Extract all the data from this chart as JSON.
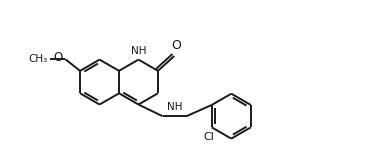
{
  "bg_color": "#ffffff",
  "line_color": "#1a1a1a",
  "line_width": 1.4,
  "figsize": [
    3.89,
    1.68
  ],
  "dpi": 100,
  "xlim": [
    0,
    10
  ],
  "ylim": [
    0,
    4.3
  ]
}
